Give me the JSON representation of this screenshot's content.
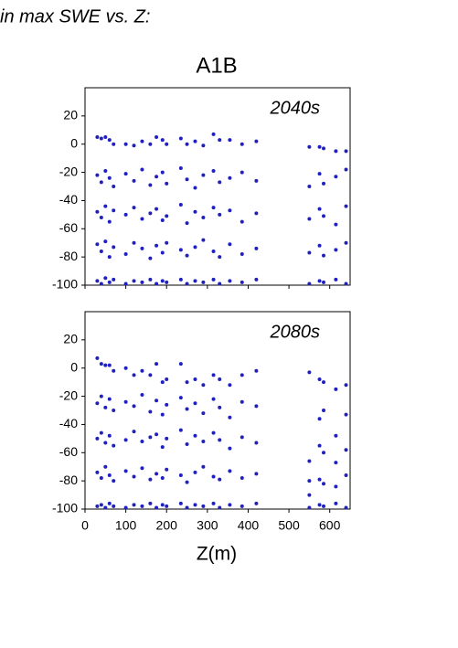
{
  "header": "in max SWE vs. Z:",
  "chart_data": [
    {
      "type": "scatter",
      "title": "A1B",
      "label": "2040s",
      "color": "#2020c0",
      "xlim": [
        0,
        650
      ],
      "ylim": [
        -100,
        40
      ],
      "xticks": [
        0,
        100,
        200,
        300,
        400,
        500,
        600
      ],
      "yticks": [
        -100,
        -80,
        -60,
        -40,
        -20,
        0,
        20
      ],
      "columns": [
        {
          "x": 30,
          "y": [
            5,
            -22,
            -48,
            -71,
            -97
          ]
        },
        {
          "x": 40,
          "y": [
            4,
            -27,
            -52,
            -76,
            -99
          ]
        },
        {
          "x": 50,
          "y": [
            5,
            -19,
            -44,
            -69,
            -95
          ]
        },
        {
          "x": 60,
          "y": [
            3,
            -24,
            -55,
            -80,
            -98
          ]
        },
        {
          "x": 70,
          "y": [
            0,
            -30,
            -47,
            -73,
            -96
          ]
        },
        {
          "x": 100,
          "y": [
            0,
            -21,
            -50,
            -78,
            -99
          ]
        },
        {
          "x": 120,
          "y": [
            -1,
            -26,
            -45,
            -70,
            -97
          ]
        },
        {
          "x": 140,
          "y": [
            2,
            -18,
            -53,
            -74,
            -98
          ]
        },
        {
          "x": 160,
          "y": [
            0,
            -29,
            -49,
            -81,
            -96
          ]
        },
        {
          "x": 175,
          "y": [
            5,
            -23,
            -46,
            -72,
            -99
          ]
        },
        {
          "x": 190,
          "y": [
            3,
            -20,
            -54,
            -77,
            -97
          ]
        },
        {
          "x": 200,
          "y": [
            0,
            -28,
            -51,
            -70,
            -98
          ]
        },
        {
          "x": 235,
          "y": [
            4,
            -17,
            -43,
            -75,
            -96
          ]
        },
        {
          "x": 250,
          "y": [
            0,
            -25,
            -56,
            -79,
            -99
          ]
        },
        {
          "x": 270,
          "y": [
            2,
            -31,
            -48,
            -73,
            -97
          ]
        },
        {
          "x": 290,
          "y": [
            -1,
            -22,
            -52,
            -68,
            -98
          ]
        },
        {
          "x": 315,
          "y": [
            7,
            -19,
            -45,
            -76,
            -96
          ]
        },
        {
          "x": 330,
          "y": [
            3,
            -27,
            -50,
            -80,
            -99
          ]
        },
        {
          "x": 355,
          "y": [
            3,
            -24,
            -47,
            -71,
            -97
          ]
        },
        {
          "x": 385,
          "y": [
            0,
            -20,
            -55,
            -78,
            -98
          ]
        },
        {
          "x": 420,
          "y": [
            2,
            -26,
            -49,
            -74,
            -96
          ]
        },
        {
          "x": 550,
          "y": [
            -2,
            -30,
            -53,
            -77,
            -99
          ]
        },
        {
          "x": 575,
          "y": [
            -2,
            -21,
            -46,
            -72,
            -97
          ]
        },
        {
          "x": 585,
          "y": [
            -3,
            -28,
            -51,
            -79,
            -98
          ]
        },
        {
          "x": 615,
          "y": [
            -5,
            -23,
            -57,
            -75,
            -96
          ]
        },
        {
          "x": 640,
          "y": [
            -5,
            -18,
            -44,
            -70,
            -99
          ]
        }
      ]
    },
    {
      "type": "scatter",
      "label": "2080s",
      "x_label": "Z(m)",
      "color": "#2020c0",
      "xlim": [
        0,
        650
      ],
      "ylim": [
        -100,
        40
      ],
      "xticks": [
        0,
        100,
        200,
        300,
        400,
        500,
        600
      ],
      "yticks": [
        -100,
        -80,
        -60,
        -40,
        -20,
        0,
        20
      ],
      "columns": [
        {
          "x": 30,
          "y": [
            7,
            -25,
            -50,
            -74,
            -98
          ]
        },
        {
          "x": 40,
          "y": [
            3,
            -20,
            -46,
            -78,
            -97
          ]
        },
        {
          "x": 50,
          "y": [
            2,
            -28,
            -53,
            -70,
            -99
          ]
        },
        {
          "x": 60,
          "y": [
            2,
            -22,
            -48,
            -76,
            -96
          ]
        },
        {
          "x": 70,
          "y": [
            -2,
            -30,
            -55,
            -80,
            -98
          ]
        },
        {
          "x": 100,
          "y": [
            0,
            -24,
            -51,
            -73,
            -99
          ]
        },
        {
          "x": 120,
          "y": [
            -5,
            -27,
            -45,
            -77,
            -97
          ]
        },
        {
          "x": 140,
          "y": [
            -2,
            -19,
            -52,
            -71,
            -98
          ]
        },
        {
          "x": 160,
          "y": [
            -5,
            -31,
            -49,
            -79,
            -96
          ]
        },
        {
          "x": 175,
          "y": [
            3,
            -23,
            -47,
            -75,
            -99
          ]
        },
        {
          "x": 190,
          "y": [
            -10,
            -33,
            -56,
            -78,
            -97
          ]
        },
        {
          "x": 200,
          "y": [
            -8,
            -26,
            -50,
            -72,
            -98
          ]
        },
        {
          "x": 235,
          "y": [
            3,
            -21,
            -44,
            -76,
            -96
          ]
        },
        {
          "x": 250,
          "y": [
            -10,
            -29,
            -54,
            -81,
            -99
          ]
        },
        {
          "x": 270,
          "y": [
            -8,
            -25,
            -48,
            -74,
            -97
          ]
        },
        {
          "x": 290,
          "y": [
            -12,
            -32,
            -52,
            -70,
            -98
          ]
        },
        {
          "x": 315,
          "y": [
            -5,
            -22,
            -46,
            -77,
            -96
          ]
        },
        {
          "x": 330,
          "y": [
            -8,
            -28,
            -51,
            -79,
            -99
          ]
        },
        {
          "x": 355,
          "y": [
            -12,
            -35,
            -57,
            -73,
            -97
          ]
        },
        {
          "x": 385,
          "y": [
            -5,
            -24,
            -49,
            -78,
            -98
          ]
        },
        {
          "x": 420,
          "y": [
            -2,
            -27,
            -53,
            -75,
            -96
          ]
        },
        {
          "x": 550,
          "y": [
            -3,
            -66,
            -80,
            -90,
            -99
          ]
        },
        {
          "x": 575,
          "y": [
            -8,
            -36,
            -55,
            -79,
            -97
          ]
        },
        {
          "x": 585,
          "y": [
            -10,
            -30,
            -60,
            -82,
            -98
          ]
        },
        {
          "x": 615,
          "y": [
            -15,
            -48,
            -67,
            -84,
            -96
          ]
        },
        {
          "x": 640,
          "y": [
            -12,
            -33,
            -58,
            -76,
            -99
          ]
        }
      ]
    }
  ]
}
